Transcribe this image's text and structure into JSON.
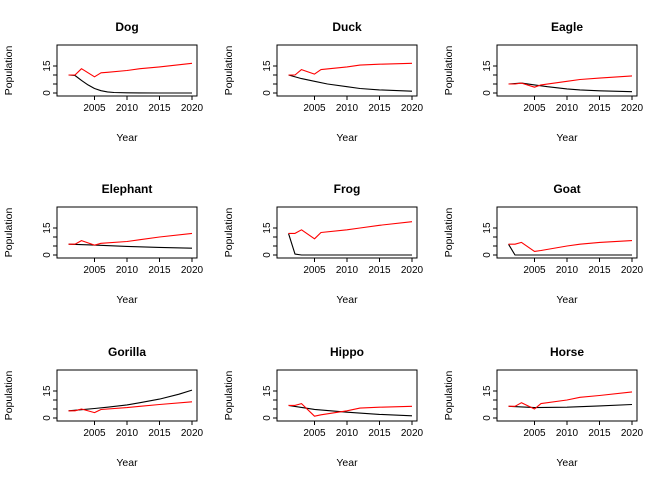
{
  "chart_data": [
    {
      "type": "line",
      "title": "Dog",
      "xlabel": "Year",
      "ylabel": "Population",
      "xlim": [
        2000,
        2020
      ],
      "ylim": [
        0,
        25
      ],
      "xticks": [
        2005,
        2010,
        2015,
        2020
      ],
      "yticks": [
        0,
        5,
        10,
        15
      ],
      "series": [
        {
          "color": "#000000",
          "x": [
            2001,
            2002,
            2003,
            2004,
            2005,
            2006,
            2007,
            2008,
            2010,
            2012,
            2015,
            2020
          ],
          "y": [
            10,
            9.7,
            7,
            4.5,
            2.5,
            1.3,
            0.6,
            0.3,
            0.1,
            0.05,
            0,
            0
          ]
        },
        {
          "color": "#ff0000",
          "x": [
            2001,
            2002,
            2003,
            2005,
            2006,
            2007,
            2010,
            2012,
            2015,
            2020
          ],
          "y": [
            10,
            10,
            13.5,
            9,
            11.2,
            11.5,
            12.5,
            13.5,
            14.5,
            16.5
          ]
        }
      ]
    },
    {
      "type": "line",
      "title": "Duck",
      "xlabel": "Year",
      "ylabel": "Population",
      "xlim": [
        2000,
        2020
      ],
      "ylim": [
        0,
        25
      ],
      "xticks": [
        2005,
        2010,
        2015,
        2020
      ],
      "yticks": [
        0,
        5,
        10,
        15
      ],
      "series": [
        {
          "color": "#000000",
          "x": [
            2001,
            2003,
            2005,
            2007,
            2010,
            2012,
            2015,
            2020
          ],
          "y": [
            10,
            8,
            6.5,
            5,
            3.5,
            2.5,
            1.7,
            1
          ]
        },
        {
          "color": "#ff0000",
          "x": [
            2001,
            2002,
            2003,
            2005,
            2006,
            2010,
            2012,
            2015,
            2020
          ],
          "y": [
            10,
            10,
            13,
            10.5,
            13,
            14.5,
            15.5,
            16,
            16.5
          ]
        }
      ]
    },
    {
      "type": "line",
      "title": "Eagle",
      "xlabel": "Year",
      "ylabel": "Population",
      "xlim": [
        2000,
        2020
      ],
      "ylim": [
        0,
        25
      ],
      "xticks": [
        2005,
        2010,
        2015,
        2020
      ],
      "yticks": [
        0,
        5,
        10,
        15
      ],
      "series": [
        {
          "color": "#000000",
          "x": [
            2001,
            2003,
            2005,
            2007,
            2010,
            2012,
            2015,
            2020
          ],
          "y": [
            5,
            5.5,
            4.5,
            3.5,
            2.3,
            1.7,
            1.2,
            0.7
          ]
        },
        {
          "color": "#ff0000",
          "x": [
            2001,
            2002,
            2003,
            2005,
            2006,
            2010,
            2012,
            2015,
            2020
          ],
          "y": [
            5,
            5,
            5.5,
            3.2,
            4.5,
            6.5,
            7.5,
            8.3,
            9.5
          ]
        }
      ]
    },
    {
      "type": "line",
      "title": "Elephant",
      "xlabel": "Year",
      "ylabel": "Population",
      "xlim": [
        2000,
        2020
      ],
      "ylim": [
        0,
        25
      ],
      "xticks": [
        2005,
        2010,
        2015,
        2020
      ],
      "yticks": [
        0,
        5,
        10,
        15
      ],
      "series": [
        {
          "color": "#000000",
          "x": [
            2001,
            2005,
            2010,
            2015,
            2020
          ],
          "y": [
            6,
            5.5,
            4.8,
            4.2,
            3.8
          ]
        },
        {
          "color": "#ff0000",
          "x": [
            2001,
            2002,
            2003,
            2005,
            2006,
            2010,
            2012,
            2015,
            2020
          ],
          "y": [
            6,
            6,
            8,
            5.5,
            6.5,
            7.5,
            8.5,
            10,
            12
          ]
        }
      ]
    },
    {
      "type": "line",
      "title": "Frog",
      "xlabel": "Year",
      "ylabel": "Population",
      "xlim": [
        2000,
        2020
      ],
      "ylim": [
        0,
        25
      ],
      "xticks": [
        2005,
        2010,
        2015,
        2020
      ],
      "yticks": [
        0,
        5,
        10,
        15
      ],
      "series": [
        {
          "color": "#000000",
          "x": [
            2001,
            2002,
            2003,
            2005,
            2010,
            2015,
            2020
          ],
          "y": [
            12,
            0.5,
            0,
            0,
            0,
            0,
            0
          ]
        },
        {
          "color": "#ff0000",
          "x": [
            2001,
            2002,
            2003,
            2005,
            2006,
            2010,
            2012,
            2015,
            2020
          ],
          "y": [
            12,
            12,
            14,
            9,
            12.5,
            14,
            15,
            16.5,
            18.5
          ]
        }
      ]
    },
    {
      "type": "line",
      "title": "Goat",
      "xlabel": "Year",
      "ylabel": "Population",
      "xlim": [
        2000,
        2020
      ],
      "ylim": [
        0,
        25
      ],
      "xticks": [
        2005,
        2010,
        2015,
        2020
      ],
      "yticks": [
        0,
        5,
        10,
        15
      ],
      "series": [
        {
          "color": "#000000",
          "x": [
            2001,
            2002,
            2005,
            2010,
            2015,
            2020
          ],
          "y": [
            6,
            0,
            0,
            0,
            0,
            0
          ]
        },
        {
          "color": "#ff0000",
          "x": [
            2001,
            2002,
            2003,
            2005,
            2006,
            2010,
            2012,
            2015,
            2020
          ],
          "y": [
            6,
            6,
            7,
            2,
            2.5,
            5,
            6,
            7,
            8
          ]
        }
      ]
    },
    {
      "type": "line",
      "title": "Gorilla",
      "xlabel": "Year",
      "ylabel": "Population",
      "xlim": [
        2000,
        2020
      ],
      "ylim": [
        0,
        25
      ],
      "xticks": [
        2005,
        2010,
        2015,
        2020
      ],
      "yticks": [
        0,
        5,
        10,
        15
      ],
      "series": [
        {
          "color": "#000000",
          "x": [
            2001,
            2003,
            2005,
            2007,
            2010,
            2012,
            2015,
            2018,
            2020
          ],
          "y": [
            4,
            4.6,
            5.3,
            6,
            7.3,
            8.5,
            10.5,
            13.2,
            15.5
          ]
        },
        {
          "color": "#ff0000",
          "x": [
            2001,
            2002,
            2003,
            2005,
            2006,
            2010,
            2012,
            2015,
            2020
          ],
          "y": [
            4,
            4,
            5,
            3,
            4.7,
            5.8,
            6.5,
            7.5,
            9
          ]
        }
      ]
    },
    {
      "type": "line",
      "title": "Hippo",
      "xlabel": "Year",
      "ylabel": "Population",
      "xlim": [
        2000,
        2020
      ],
      "ylim": [
        0,
        25
      ],
      "xticks": [
        2005,
        2010,
        2015,
        2020
      ],
      "yticks": [
        0,
        5,
        10,
        15
      ],
      "series": [
        {
          "color": "#000000",
          "x": [
            2001,
            2005,
            2010,
            2015,
            2020
          ],
          "y": [
            7,
            4.8,
            3.2,
            2,
            1.2
          ]
        },
        {
          "color": "#ff0000",
          "x": [
            2001,
            2002,
            2003,
            2005,
            2006,
            2010,
            2012,
            2015,
            2020
          ],
          "y": [
            7,
            7,
            8,
            1,
            1.8,
            4,
            5.5,
            6,
            6.5
          ]
        }
      ]
    },
    {
      "type": "line",
      "title": "Horse",
      "xlabel": "Year",
      "ylabel": "Population",
      "xlim": [
        2000,
        2020
      ],
      "ylim": [
        0,
        25
      ],
      "xticks": [
        2005,
        2010,
        2015,
        2020
      ],
      "yticks": [
        0,
        5,
        10,
        15
      ],
      "series": [
        {
          "color": "#000000",
          "x": [
            2001,
            2005,
            2010,
            2015,
            2020
          ],
          "y": [
            6.5,
            5.8,
            6,
            6.7,
            7.5
          ]
        },
        {
          "color": "#ff0000",
          "x": [
            2001,
            2002,
            2003,
            2005,
            2006,
            2010,
            2012,
            2015,
            2020
          ],
          "y": [
            6.5,
            6.5,
            8.5,
            5,
            8,
            10,
            11.5,
            12.5,
            14.5
          ]
        }
      ]
    }
  ]
}
